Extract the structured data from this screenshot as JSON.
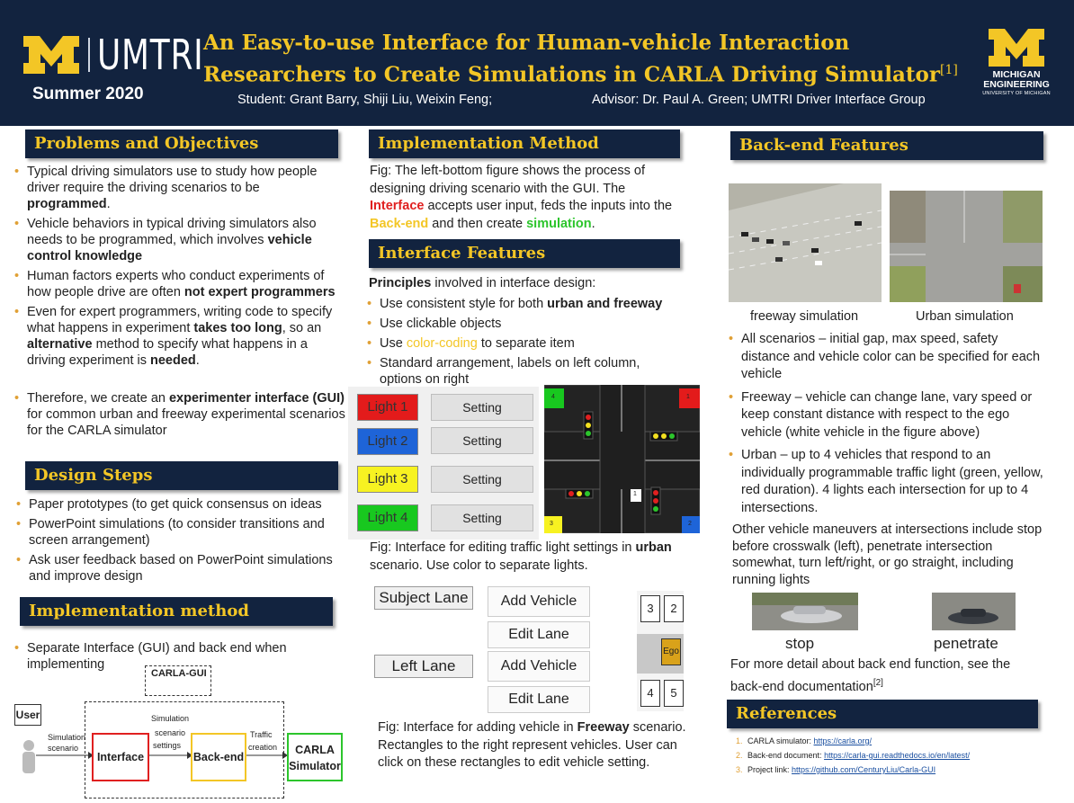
{
  "header": {
    "logo_text": "UMTRI",
    "season": "Summer 2020",
    "title_line1": "An Easy-to-use Interface for Human-vehicle Interaction",
    "title_line2": "Researchers to Create Simulations in CARLA Driving Simulator",
    "title_ref": "[1]",
    "students": "Student: Grant Barry, Shiji Liu, Weixin Feng;",
    "advisor": "Advisor: Dr. Paul A. Green; UMTRI Driver Interface  Group",
    "mich_eng_line1": "MICHIGAN",
    "mich_eng_line2": "ENGINEERING",
    "mich_eng_line3": "UNIVERSITY OF MICHIGAN"
  },
  "problems": {
    "heading": "Problems and Objectives",
    "b1_a": "Typical driving simulators use to study how people driver require the driving scenarios to be ",
    "b1_b": "programmed",
    "b1_c": ".",
    "b2_a": "Vehicle behaviors in typical driving simulators also needs to be programmed, which involves ",
    "b2_b": "vehicle control knowledge",
    "b3_a": "Human factors experts who conduct experiments of how people drive are often ",
    "b3_b": "not expert programmers",
    "b4_a": "Even for expert programmers, writing code to specify what happens in experiment ",
    "b4_b": "takes too long",
    "b4_c": ", so an ",
    "b4_d": "alternative",
    "b4_e": " method to specify what happens in a driving experiment is ",
    "b4_f": "needed",
    "b4_g": ".",
    "b5_a": "Therefore, we create an ",
    "b5_b": "experimenter interface (GUI)",
    "b5_c": " for common urban and freeway experimental scenarios for the CARLA simulator"
  },
  "design": {
    "heading": "Design Steps",
    "items": [
      "Paper prototypes (to get quick consensus on ideas",
      "PowerPoint simulations (to consider transitions and screen arrangement)",
      "Ask user feedback based on PowerPoint simulations and improve design"
    ]
  },
  "impl_left": {
    "heading": "Implementation method",
    "item": "Separate Interface (GUI) and back end when implementing"
  },
  "diagram": {
    "carla_gui": "CARLA-GUI",
    "user": "User",
    "sim_scenario_1": "Simulation",
    "sim_scenario_2": "scenario",
    "interface": "Interface",
    "settings_1": "Simulation",
    "settings_2": "scenario",
    "settings_3": "settings",
    "backend": "Back-end",
    "traffic_1": "Traffic",
    "traffic_2": "creation",
    "carla_1": "CARLA",
    "carla_2": "Simulator"
  },
  "impl_mid": {
    "heading": "Implementation Method",
    "text_a": "Fig: The left-bottom figure shows the process of designing driving scenario with the GUI. The ",
    "text_b": "Interface",
    "text_c": " accepts user input, feds the inputs into the ",
    "text_d": "Back-end",
    "text_e": " and then create ",
    "text_f": "simulation",
    "text_g": "."
  },
  "interface": {
    "heading": "Interface Features",
    "principles_a": "Principles",
    "principles_b": " involved in interface design:",
    "i1_a": "Use consistent style for both ",
    "i1_b": "urban and freeway",
    "i2": "Use clickable  objects",
    "i3_a": "Use ",
    "i3_b": "color-coding",
    "i3_c": " to separate item",
    "i4": "Standard arrangement, labels on left column, options on right",
    "lights": [
      {
        "label": "Light 1",
        "color": "#e31b1b"
      },
      {
        "label": "Light 2",
        "color": "#1e64d8"
      },
      {
        "label": "Light 3",
        "color": "#f7f221"
      },
      {
        "label": "Light 4",
        "color": "#18c81f"
      }
    ],
    "setting_label": "Setting",
    "cap1_a": "Fig: Interface for editing traffic light settings in ",
    "cap1_b": "urban",
    "cap1_c": " scenario. Use color to separate lights.",
    "intersection_labels": [
      "4",
      "1",
      "3",
      "2",
      "1"
    ],
    "subject_lane": "Subject Lane",
    "left_lane": "Left Lane",
    "add_vehicle": "Add Vehicle",
    "edit_lane": "Edit Lane",
    "vehicles": [
      "3",
      "2",
      "Ego",
      "4",
      "5"
    ],
    "cap2_a": "Fig: Interface for adding vehicle in ",
    "cap2_b": "Freeway",
    "cap2_c": " scenario. Rectangles to the right represent vehicles. User can click on these rectangles to edit vehicle setting."
  },
  "backend": {
    "heading": "Back-end Features",
    "img1_label": "freeway simulation",
    "img2_label": "Urban simulation",
    "b1": "All scenarios – initial gap, max speed, safety distance and vehicle color can be specified for each vehicle",
    "b2": "Freeway – vehicle can change lane, vary speed or keep constant distance with respect to the ego vehicle (white vehicle in the figure above)",
    "b3": "Urban – up to 4 vehicles that respond to an individually programmable traffic light (green, yellow, red duration). 4 lights each intersection for up to 4 intersections.",
    "other": "Other vehicle maneuvers at intersections include stop before crosswalk (left), penetrate intersection somewhat, turn left/right, or go straight, including running lights",
    "stop": "stop",
    "penetrate": "penetrate",
    "more": "For more detail about back end function, see the back-end documentation",
    "more_ref": "[2]"
  },
  "references": {
    "heading": "References",
    "items": [
      {
        "num": "1.",
        "label": "CARLA simulator:  ",
        "link": "https://carla.org/"
      },
      {
        "num": "2.",
        "label": "Back-end document: ",
        "link": "https://carla-gui.readthedocs.io/en/latest/"
      },
      {
        "num": "3.",
        "label": "Project link: ",
        "link": "https://github.com/CenturyLiu/Carla-GUI"
      }
    ]
  },
  "colors": {
    "navy": "#12233f",
    "maize": "#f3c626",
    "red": "#e02020",
    "green": "#2cc52c"
  }
}
